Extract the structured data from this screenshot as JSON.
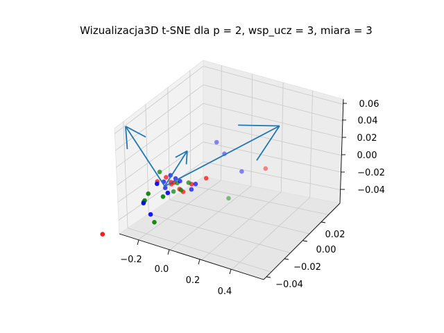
{
  "chart_data": {
    "type": "scatter",
    "projection": "3d",
    "title": "Wizualizacja3D t-SNE dla p = 2, wsp_ucz = 3, miara = 3",
    "x_ticks": [
      "−0.2",
      "0.0",
      "0.2",
      "0.4"
    ],
    "y_ticks": [
      "−0.04",
      "−0.02",
      "0.00",
      "0.02"
    ],
    "z_ticks": [
      "−0.04",
      "−0.02",
      "0.00",
      "0.02",
      "0.04",
      "0.06"
    ],
    "xlim": [
      -0.28,
      0.52
    ],
    "ylim": [
      -0.045,
      0.035
    ],
    "zlim": [
      -0.05,
      0.065
    ],
    "grid": true,
    "colors": {
      "red": "#ff0000",
      "green": "#008000",
      "blue": "#0000ff",
      "arrow": "#1f77b4"
    },
    "series": [
      {
        "color": "red",
        "points": [
          [
            -0.22,
            -0.02,
            -0.048
          ],
          [
            0.48,
            0.03,
            0.015
          ],
          [
            0.22,
            0.01,
            0.01
          ],
          [
            0.16,
            0.005,
            0.005
          ],
          [
            0.03,
            0.005,
            0.0
          ],
          [
            0.05,
            0.002,
            0.002
          ],
          [
            0.0,
            0.004,
            0.005
          ],
          [
            0.1,
            0.003,
            -0.002
          ],
          [
            0.07,
            0.001,
            0.006
          ],
          [
            0.12,
            0.004,
            -0.005
          ],
          [
            -0.04,
            0.002,
            0.0
          ]
        ]
      },
      {
        "color": "green",
        "points": [
          [
            0.32,
            0.022,
            -0.02
          ],
          [
            -0.04,
            0.003,
            0.01
          ],
          [
            -0.06,
            -0.003,
            -0.01
          ],
          [
            0.04,
            -0.01,
            -0.03
          ],
          [
            0.1,
            0.005,
            -0.005
          ],
          [
            0.13,
            0.007,
            0.003
          ],
          [
            -0.08,
            -0.002,
            -0.02
          ],
          [
            0.02,
            0.0,
            -0.012
          ],
          [
            0.06,
            0.004,
            -0.008
          ],
          [
            0.08,
            0.003,
            0.004
          ],
          [
            -0.07,
            -0.005,
            -0.018
          ]
        ]
      },
      {
        "color": "blue",
        "points": [
          [
            0.2,
            0.02,
            0.04
          ],
          [
            0.26,
            0.02,
            0.03
          ],
          [
            0.36,
            0.025,
            0.01
          ],
          [
            0.16,
            0.01,
            0.0
          ],
          [
            0.13,
            0.012,
            -0.01
          ],
          [
            0.03,
            0.003,
            0.01
          ],
          [
            -0.08,
            -0.003,
            -0.022
          ],
          [
            -0.01,
            -0.006,
            -0.028
          ],
          [
            0.06,
            0.004,
            0.007
          ],
          [
            0.0,
            0.002,
            0.002
          ],
          [
            0.05,
            -0.001,
            -0.005
          ],
          [
            0.02,
            0.001,
            -0.003
          ],
          [
            -0.03,
            0.0,
            0.0
          ],
          [
            0.08,
            0.006,
            0.003
          ]
        ]
      }
    ],
    "vectors": [
      {
        "from": [
          0.02,
          0.0,
          0.0
        ],
        "to": [
          -0.16,
          -0.025,
          0.085
        ]
      },
      {
        "from": [
          0.02,
          0.0,
          0.0
        ],
        "to": [
          0.5,
          0.035,
          0.06
        ]
      },
      {
        "from": [
          0.02,
          0.0,
          0.0
        ],
        "to": [
          0.1,
          0.005,
          0.04
        ]
      }
    ]
  }
}
